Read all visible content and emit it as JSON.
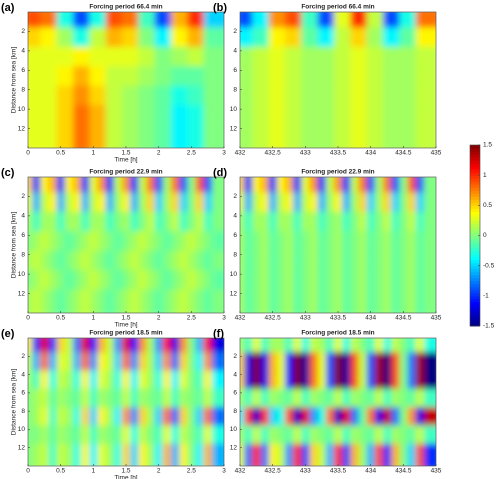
{
  "chart_data": [
    {
      "type": "heatmap",
      "panel_label": "(a)",
      "title": "Forcing period 66.4 min",
      "x_label": "Time [h]",
      "y_label": "Distance from sea [km]",
      "xlim": [
        0,
        3
      ],
      "xticks": [
        0,
        0.5,
        1,
        1.5,
        2,
        2.5,
        3
      ],
      "ylim": [
        0,
        14
      ],
      "yticks": [
        2,
        4,
        6,
        8,
        10,
        12
      ],
      "x": [
        0.125,
        0.375,
        0.625,
        0.875,
        1.125,
        1.375,
        1.625,
        1.875,
        2.125,
        2.375,
        2.625,
        2.875
      ],
      "y": [
        1,
        3,
        5,
        7,
        9,
        11,
        13
      ],
      "z": [
        [
          0.9,
          0.8,
          -0.3,
          -0.9,
          -0.3,
          0.9,
          0.8,
          -0.2,
          -0.9,
          0.6,
          1.0,
          -0.5
        ],
        [
          0.5,
          0.4,
          0.1,
          -0.3,
          0.2,
          0.6,
          0.5,
          0.0,
          -0.4,
          0.4,
          0.6,
          -0.1
        ],
        [
          0.3,
          0.3,
          0.3,
          0.4,
          0.3,
          0.3,
          0.3,
          0.2,
          0.0,
          0.1,
          0.2,
          0.0
        ],
        [
          0.3,
          0.3,
          0.4,
          0.6,
          0.4,
          0.2,
          0.2,
          0.1,
          0.0,
          -0.1,
          -0.1,
          0.0
        ],
        [
          0.3,
          0.3,
          0.5,
          0.7,
          0.5,
          0.2,
          0.1,
          0.0,
          -0.1,
          -0.3,
          -0.2,
          0.0
        ],
        [
          0.3,
          0.3,
          0.5,
          0.8,
          0.6,
          0.2,
          0.1,
          0.0,
          -0.1,
          -0.4,
          -0.3,
          0.0
        ],
        [
          0.3,
          0.3,
          0.5,
          0.8,
          0.6,
          0.2,
          0.1,
          0.0,
          -0.1,
          -0.4,
          -0.3,
          0.0
        ]
      ]
    },
    {
      "type": "heatmap",
      "panel_label": "(b)",
      "title": "Forcing period 66.4 min",
      "xlim": [
        432,
        435
      ],
      "xticks": [
        432,
        432.5,
        433,
        433.5,
        434,
        434.5,
        435
      ],
      "ylim": [
        0,
        14
      ],
      "yticks": [
        2,
        4,
        6,
        8,
        10,
        12
      ],
      "x": [
        432.125,
        432.375,
        432.625,
        432.875,
        433.125,
        433.375,
        433.625,
        433.875,
        434.125,
        434.375,
        434.625,
        434.875
      ],
      "y": [
        1,
        3,
        5,
        7,
        9,
        11,
        13
      ],
      "z": [
        [
          -0.9,
          -0.4,
          0.7,
          0.9,
          -0.2,
          -0.9,
          0.3,
          1.0,
          0.2,
          -0.9,
          -0.3,
          0.8
        ],
        [
          -0.4,
          -0.2,
          0.4,
          0.5,
          -0.1,
          -0.4,
          0.2,
          0.5,
          0.1,
          -0.4,
          -0.1,
          0.4
        ],
        [
          0.1,
          0.2,
          0.3,
          0.2,
          0.1,
          0.1,
          0.2,
          0.3,
          0.2,
          0.1,
          0.1,
          0.2
        ],
        [
          0.1,
          0.2,
          0.3,
          0.2,
          0.1,
          0.1,
          0.2,
          0.3,
          0.2,
          0.1,
          0.1,
          0.2
        ],
        [
          0.1,
          0.2,
          0.3,
          0.2,
          0.1,
          0.1,
          0.2,
          0.3,
          0.2,
          0.1,
          0.1,
          0.2
        ],
        [
          0.1,
          0.2,
          0.3,
          0.2,
          0.1,
          0.1,
          0.2,
          0.3,
          0.2,
          0.1,
          0.1,
          0.2
        ],
        [
          0.1,
          0.2,
          0.3,
          0.2,
          0.1,
          0.1,
          0.2,
          0.3,
          0.2,
          0.1,
          0.1,
          0.2
        ]
      ]
    },
    {
      "type": "heatmap",
      "panel_label": "(c)",
      "title": "Forcing period 22.9 min",
      "x_label": "Time [h]",
      "y_label": "Distance from sea [km]",
      "xlim": [
        0,
        3
      ],
      "xticks": [
        0,
        0.5,
        1,
        1.5,
        2,
        2.5,
        3
      ],
      "ylim": [
        0,
        14
      ],
      "yticks": [
        2,
        4,
        6,
        8,
        10,
        12
      ],
      "x": [
        0.0625,
        0.1875,
        0.3125,
        0.4375,
        0.5625,
        0.6875,
        0.8125,
        0.9375,
        1.0625,
        1.1875,
        1.3125,
        1.4375,
        1.5625,
        1.6875,
        1.8125,
        1.9375,
        2.0625,
        2.1875,
        2.3125,
        2.4375,
        2.5625,
        2.6875,
        2.8125,
        2.9375
      ],
      "y": [
        1,
        3,
        5,
        7,
        9,
        11,
        13
      ],
      "z": [
        [
          0.5,
          -1.0,
          0.4,
          0.6,
          -1.0,
          0.4,
          0.6,
          -1.0,
          0.3,
          0.7,
          -1.0,
          0.2,
          0.7,
          -1.0,
          0.2,
          0.8,
          -0.9,
          0.1,
          0.8,
          -0.9,
          0.0,
          0.9,
          -0.9,
          0.0
        ],
        [
          0.3,
          -0.6,
          0.2,
          0.4,
          -0.6,
          0.2,
          0.4,
          -0.6,
          0.2,
          0.4,
          -0.6,
          0.1,
          0.4,
          -0.6,
          0.1,
          0.5,
          -0.5,
          0.1,
          0.5,
          -0.5,
          0.0,
          0.5,
          -0.5,
          0.0
        ],
        [
          0.1,
          -0.2,
          0.1,
          0.1,
          -0.2,
          0.1,
          0.1,
          -0.2,
          0.1,
          0.1,
          -0.2,
          0.0,
          0.1,
          -0.2,
          0.0,
          0.2,
          -0.2,
          0.0,
          0.2,
          -0.2,
          0.0,
          0.2,
          -0.2,
          0.0
        ],
        [
          0.0,
          0.1,
          0.2,
          0.1,
          0.0,
          -0.1,
          0.0,
          0.1,
          0.2,
          0.1,
          0.0,
          -0.1,
          0.0,
          0.1,
          0.2,
          0.1,
          0.0,
          -0.1,
          0.0,
          0.1,
          0.2,
          0.1,
          0.0,
          -0.1
        ],
        [
          0.1,
          0.2,
          0.1,
          0.0,
          -0.1,
          0.0,
          0.1,
          0.2,
          0.1,
          0.0,
          -0.1,
          0.0,
          0.1,
          0.2,
          0.1,
          0.0,
          -0.1,
          0.0,
          0.1,
          0.2,
          0.1,
          0.0,
          -0.1,
          0.0
        ],
        [
          0.0,
          0.1,
          0.2,
          0.1,
          0.0,
          -0.1,
          0.0,
          0.1,
          0.2,
          0.1,
          0.0,
          -0.1,
          0.0,
          0.1,
          0.2,
          0.1,
          0.0,
          -0.1,
          0.0,
          0.1,
          0.2,
          0.1,
          0.0,
          -0.1
        ],
        [
          0.1,
          0.2,
          0.1,
          0.0,
          -0.1,
          0.0,
          0.1,
          0.2,
          0.1,
          0.0,
          -0.1,
          0.0,
          0.1,
          0.2,
          0.1,
          0.0,
          -0.1,
          0.0,
          0.1,
          0.2,
          0.1,
          0.0,
          -0.1,
          0.0
        ]
      ]
    },
    {
      "type": "heatmap",
      "panel_label": "(d)",
      "title": "Forcing period 22.9 min",
      "xlim": [
        432,
        435
      ],
      "xticks": [
        432,
        432.5,
        433,
        433.5,
        434,
        434.5,
        435
      ],
      "ylim": [
        0,
        14
      ],
      "yticks": [
        2,
        4,
        6,
        8,
        10,
        12
      ],
      "x": [
        432.0625,
        432.1875,
        432.3125,
        432.4375,
        432.5625,
        432.6875,
        432.8125,
        432.9375,
        433.0625,
        433.1875,
        433.3125,
        433.4375,
        433.5625,
        433.6875,
        433.8125,
        433.9375,
        434.0625,
        434.1875,
        434.3125,
        434.4375,
        434.5625,
        434.6875,
        434.8125,
        434.9375
      ],
      "y": [
        1,
        3,
        5,
        7,
        9,
        11,
        13
      ],
      "z": [
        [
          0.5,
          -1.0,
          0.4,
          0.6,
          -1.0,
          0.4,
          0.6,
          -1.0,
          0.3,
          0.7,
          -1.0,
          0.2,
          0.7,
          -1.0,
          0.2,
          0.8,
          -0.9,
          0.1,
          0.8,
          -0.9,
          0.0,
          0.9,
          -0.9,
          0.0
        ],
        [
          0.3,
          -0.6,
          0.2,
          0.4,
          -0.6,
          0.2,
          0.4,
          -0.6,
          0.2,
          0.4,
          -0.6,
          0.1,
          0.4,
          -0.6,
          0.1,
          0.5,
          -0.5,
          0.1,
          0.5,
          -0.5,
          0.0,
          0.5,
          -0.5,
          0.0
        ],
        [
          0.1,
          -0.2,
          0.1,
          0.1,
          -0.2,
          0.1,
          0.1,
          -0.2,
          0.1,
          0.1,
          -0.2,
          0.0,
          0.1,
          -0.2,
          0.0,
          0.2,
          -0.2,
          0.0,
          0.2,
          -0.2,
          0.0,
          0.2,
          -0.2,
          0.0
        ],
        [
          0.1,
          -0.1,
          0.0,
          0.1,
          -0.1,
          0.0,
          0.1,
          -0.1,
          0.0,
          0.1,
          -0.1,
          0.0,
          0.1,
          -0.1,
          0.0,
          0.1,
          -0.1,
          0.0,
          0.1,
          -0.1,
          0.0,
          0.1,
          -0.1,
          0.0
        ],
        [
          0.1,
          -0.1,
          0.0,
          0.1,
          -0.1,
          0.0,
          0.1,
          -0.1,
          0.0,
          0.1,
          -0.1,
          0.0,
          0.1,
          -0.1,
          0.0,
          0.1,
          -0.1,
          0.0,
          0.1,
          -0.1,
          0.0,
          0.1,
          -0.1,
          0.0
        ],
        [
          0.1,
          -0.1,
          0.0,
          0.1,
          -0.1,
          0.0,
          0.1,
          -0.1,
          0.0,
          0.1,
          -0.1,
          0.0,
          0.1,
          -0.1,
          0.0,
          0.1,
          -0.1,
          0.0,
          0.1,
          -0.1,
          0.0,
          0.1,
          -0.1,
          0.0
        ],
        [
          0.1,
          -0.1,
          0.0,
          0.1,
          -0.1,
          0.0,
          0.1,
          -0.1,
          0.0,
          0.1,
          -0.1,
          0.0,
          0.1,
          -0.1,
          0.0,
          0.1,
          -0.1,
          0.0,
          0.1,
          -0.1,
          0.0,
          0.1,
          -0.1,
          0.0
        ]
      ]
    },
    {
      "type": "heatmap",
      "panel_label": "(e)",
      "title": "Forcing period 18.5 min",
      "x_label": "Time [h]",
      "y_label": "Distance from sea [km]",
      "xlim": [
        0,
        3
      ],
      "xticks": [
        0,
        0.5,
        1,
        1.5,
        2,
        2.5,
        3
      ],
      "ylim": [
        0,
        14
      ],
      "yticks": [
        2,
        4,
        6,
        8,
        10,
        12
      ],
      "x": [
        0.0625,
        0.1875,
        0.3125,
        0.4375,
        0.5625,
        0.6875,
        0.8125,
        0.9375,
        1.0625,
        1.1875,
        1.3125,
        1.4375,
        1.5625,
        1.6875,
        1.8125,
        1.9375,
        2.0625,
        2.1875,
        2.3125,
        2.4375,
        2.5625,
        2.6875,
        2.8125,
        2.9375
      ],
      "y": [
        1,
        3,
        5,
        7,
        9,
        11,
        13
      ],
      "z": [
        [
          0.4,
          -1.0,
          1.2,
          -1.0,
          0.5,
          0.2,
          -0.8,
          1.2,
          -1.1,
          0.6,
          0.2,
          -0.7,
          1.2,
          -1.1,
          0.7,
          0.1,
          -0.7,
          1.1,
          -1.2,
          0.7,
          0.0,
          -0.6,
          1.1,
          -1.2
        ],
        [
          0.2,
          -0.6,
          0.8,
          -0.6,
          0.3,
          0.2,
          -0.6,
          0.8,
          -0.7,
          0.4,
          0.2,
          -0.5,
          0.8,
          -0.7,
          0.5,
          0.1,
          -0.5,
          0.7,
          -0.8,
          0.5,
          0.0,
          -0.4,
          0.7,
          -0.8
        ],
        [
          0.1,
          -0.2,
          0.4,
          -0.3,
          0.2,
          0.1,
          -0.3,
          0.4,
          -0.4,
          0.3,
          0.1,
          -0.3,
          0.4,
          -0.4,
          0.3,
          0.1,
          -0.3,
          0.4,
          -0.4,
          0.3,
          0.0,
          -0.2,
          0.4,
          -0.4
        ],
        [
          0.0,
          0.1,
          0.2,
          -0.1,
          0.1,
          0.0,
          -0.1,
          0.2,
          -0.2,
          0.1,
          0.0,
          -0.1,
          0.2,
          -0.2,
          0.1,
          0.0,
          -0.1,
          0.2,
          -0.2,
          0.1,
          0.0,
          -0.1,
          0.2,
          -0.2
        ],
        [
          0.0,
          0.1,
          0.3,
          -0.2,
          0.2,
          0.1,
          -0.3,
          0.5,
          -0.5,
          0.4,
          0.1,
          -0.4,
          0.7,
          -0.7,
          0.5,
          0.1,
          -0.5,
          0.8,
          -0.8,
          0.5,
          0.0,
          -0.5,
          0.8,
          -0.8
        ],
        [
          0.0,
          0.0,
          0.1,
          -0.1,
          0.1,
          0.0,
          -0.1,
          0.2,
          -0.2,
          0.1,
          0.0,
          -0.1,
          0.3,
          -0.3,
          0.2,
          0.0,
          -0.2,
          0.3,
          -0.3,
          0.2,
          0.0,
          -0.2,
          0.3,
          -0.3
        ],
        [
          0.0,
          0.1,
          0.2,
          -0.2,
          0.2,
          0.1,
          -0.3,
          0.4,
          -0.4,
          0.3,
          0.1,
          -0.3,
          0.5,
          -0.5,
          0.4,
          0.1,
          -0.4,
          0.6,
          -0.6,
          0.4,
          0.0,
          -0.4,
          0.6,
          -0.6
        ]
      ]
    },
    {
      "type": "heatmap",
      "panel_label": "(f)",
      "title": "Forcing period 18.5 min",
      "xlim": [
        432,
        435
      ],
      "xticks": [
        432,
        432.5,
        433,
        433.5,
        434,
        434.5,
        435
      ],
      "ylim": [
        0,
        14
      ],
      "yticks": [
        2,
        4,
        6,
        8,
        10,
        12
      ],
      "x": [
        432.0625,
        432.1875,
        432.3125,
        432.4375,
        432.5625,
        432.6875,
        432.8125,
        432.9375,
        433.0625,
        433.1875,
        433.3125,
        433.4375,
        433.5625,
        433.6875,
        433.8125,
        433.9375,
        434.0625,
        434.1875,
        434.3125,
        434.4375,
        434.5625,
        434.6875,
        434.8125,
        434.9375
      ],
      "y": [
        1,
        3,
        5,
        7,
        9,
        11,
        13
      ],
      "z": [
        [
          0.1,
          -0.2,
          0.3,
          -0.2,
          0.1,
          0.1,
          -0.2,
          0.3,
          -0.3,
          0.2,
          0.1,
          -0.2,
          0.3,
          -0.3,
          0.2,
          0.0,
          -0.2,
          0.3,
          -0.3,
          0.2,
          0.0,
          -0.2,
          0.3,
          -0.3
        ],
        [
          0.5,
          -1.2,
          1.5,
          -1.2,
          0.6,
          0.3,
          -1.1,
          1.5,
          -1.4,
          0.8,
          0.3,
          -0.9,
          1.5,
          -1.4,
          0.9,
          0.2,
          -0.9,
          1.4,
          -1.5,
          0.9,
          0.0,
          -0.8,
          1.4,
          -1.5
        ],
        [
          0.5,
          -1.2,
          1.5,
          -1.2,
          0.6,
          0.3,
          -1.1,
          1.5,
          -1.4,
          0.8,
          0.3,
          -0.9,
          1.5,
          -1.4,
          0.9,
          0.2,
          -0.9,
          1.4,
          -1.5,
          0.9,
          0.0,
          -0.8,
          1.4,
          -1.5
        ],
        [
          0.1,
          -0.2,
          0.2,
          -0.2,
          0.1,
          0.0,
          -0.1,
          0.2,
          -0.2,
          0.1,
          0.0,
          -0.1,
          0.2,
          -0.2,
          0.1,
          0.0,
          -0.1,
          0.2,
          -0.2,
          0.1,
          0.0,
          -0.1,
          0.2,
          -0.2
        ],
        [
          -0.4,
          1.0,
          -1.3,
          1.0,
          -0.5,
          -0.3,
          0.9,
          -1.3,
          1.2,
          -0.7,
          -0.3,
          0.8,
          -1.3,
          1.2,
          -0.8,
          -0.1,
          0.8,
          -1.2,
          1.3,
          -0.8,
          0.0,
          0.7,
          -1.2,
          1.3
        ],
        [
          0.1,
          -0.2,
          0.2,
          -0.2,
          0.1,
          0.0,
          -0.1,
          0.2,
          -0.2,
          0.1,
          0.0,
          -0.1,
          0.2,
          -0.2,
          0.1,
          0.0,
          -0.1,
          0.2,
          -0.2,
          0.1,
          0.0,
          -0.1,
          0.2,
          -0.2
        ],
        [
          0.3,
          -0.8,
          1.0,
          -0.8,
          0.4,
          0.2,
          -0.7,
          1.0,
          -0.9,
          0.5,
          0.2,
          -0.6,
          1.0,
          -0.9,
          0.6,
          0.1,
          -0.6,
          0.9,
          -1.0,
          0.6,
          0.0,
          -0.5,
          0.9,
          -1.0
        ]
      ]
    },
    {
      "type": "colorbar",
      "colormap": "jet",
      "clim": [
        -1.5,
        1.5
      ],
      "ticks": [
        1.5,
        1,
        0.5,
        0,
        -0.5,
        -1,
        -1.5
      ]
    }
  ]
}
